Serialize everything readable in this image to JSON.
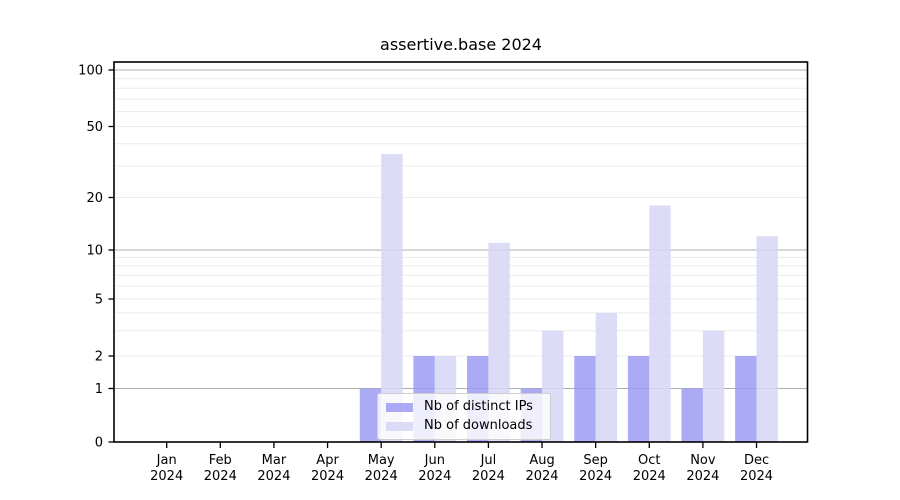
{
  "window": {
    "background": "#ffffff"
  },
  "chart_data": {
    "type": "bar",
    "title": "assertive.base 2024",
    "categories": [
      "Jan",
      "Feb",
      "Mar",
      "Apr",
      "May",
      "Jun",
      "Jul",
      "Aug",
      "Sep",
      "Oct",
      "Nov",
      "Dec"
    ],
    "x_year_label": "2024",
    "series": [
      {
        "name": "Nb of distinct IPs",
        "color": "#9b9bf3",
        "values": [
          0,
          0,
          0,
          0,
          1,
          2,
          2,
          1,
          2,
          2,
          1,
          2
        ]
      },
      {
        "name": "Nb of downloads",
        "color": "#d6d6f5",
        "values": [
          0,
          0,
          0,
          0,
          35,
          2,
          11,
          3,
          4,
          18,
          3,
          12
        ]
      }
    ],
    "bar_alpha": 0.85,
    "yscale": "symlog",
    "ylim": [
      0,
      110
    ],
    "y_ticks": [
      0,
      1,
      2,
      5,
      10,
      20,
      50,
      100
    ],
    "y_minor_gridlines": [
      2,
      3,
      4,
      5,
      6,
      7,
      8,
      9,
      20,
      30,
      40,
      50,
      60,
      70,
      80,
      90
    ],
    "y_major_gridlines": [
      1,
      10,
      100
    ],
    "grid": "horizontal",
    "legend_position": "inside-bottom-center",
    "colors": {
      "grid_minor": "#ececec",
      "grid_major": "#adadad",
      "axis": "#000000",
      "text": "#000000",
      "legend_border": "#cfcfcf",
      "legend_bg": "rgba(255,255,255,0.8)"
    }
  }
}
